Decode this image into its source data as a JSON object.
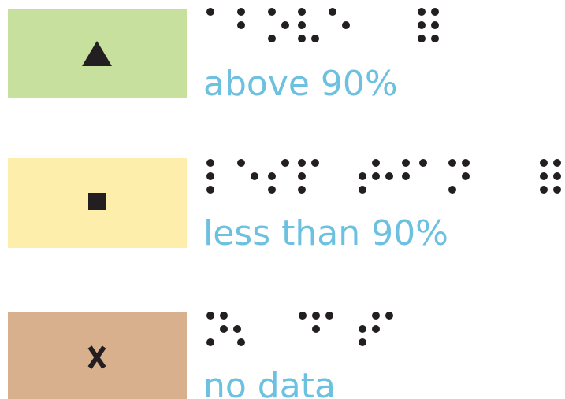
{
  "items": [
    {
      "label": "above 90%"
    },
    {
      "label": "less than 90%"
    },
    {
      "label": "no data"
    }
  ]
}
